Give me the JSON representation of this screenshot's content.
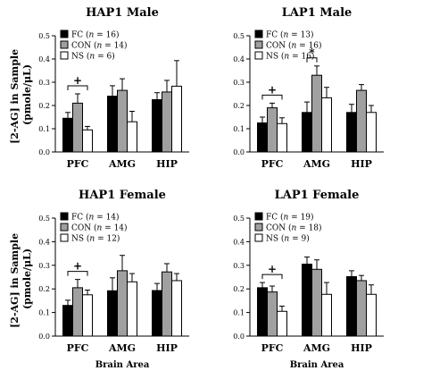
{
  "figure": {
    "ylabel_line1": "[2-AG] in Sample",
    "ylabel_line2": "(pmole/μL)",
    "xlabel": "Brain Area"
  },
  "colors": {
    "FC": "#000000",
    "CON": "#a0a0a0",
    "NS": "#ffffff",
    "stroke": "#000000"
  },
  "chart_data": [
    {
      "type": "bar",
      "title": "HAP1 Male",
      "categories": [
        "PFC",
        "AMG",
        "HIP"
      ],
      "ylim": [
        0,
        0.5
      ],
      "yticks": [
        "0.0",
        "0.1",
        "0.2",
        "0.3",
        "0.4",
        "0.5"
      ],
      "series": [
        {
          "name": "FC",
          "n": "16",
          "values": [
            0.145,
            0.24,
            0.225
          ],
          "errors": [
            0.025,
            0.045,
            0.03
          ]
        },
        {
          "name": "CON",
          "n": "14",
          "values": [
            0.21,
            0.265,
            0.258
          ],
          "errors": [
            0.04,
            0.05,
            0.05
          ]
        },
        {
          "name": "NS",
          "n": "6",
          "values": [
            0.095,
            0.13,
            0.283
          ],
          "errors": [
            0.015,
            0.045,
            0.11
          ]
        }
      ],
      "significance": [
        {
          "category": "PFC",
          "between": [
            "FC",
            "NS"
          ],
          "symbol": "+"
        }
      ],
      "legend": "top-left",
      "show_xlabel": false
    },
    {
      "type": "bar",
      "title": "LAP1 Male",
      "categories": [
        "PFC",
        "AMG",
        "HIP"
      ],
      "ylim": [
        0,
        0.5
      ],
      "yticks": [
        "0.0",
        "0.1",
        "0.2",
        "0.3",
        "0.4",
        "0.5"
      ],
      "series": [
        {
          "name": "FC",
          "n": "13",
          "values": [
            0.125,
            0.17,
            0.17
          ],
          "errors": [
            0.025,
            0.045,
            0.035
          ]
        },
        {
          "name": "CON",
          "n": "16",
          "values": [
            0.19,
            0.33,
            0.265
          ],
          "errors": [
            0.02,
            0.04,
            0.025
          ]
        },
        {
          "name": "NS",
          "n": "16",
          "values": [
            0.122,
            0.233,
            0.17
          ],
          "errors": [
            0.025,
            0.045,
            0.03
          ]
        }
      ],
      "significance": [
        {
          "category": "PFC",
          "between": [
            "FC",
            "NS"
          ],
          "symbol": "+"
        },
        {
          "category": "AMG",
          "between": [
            "FC",
            "CON"
          ],
          "symbol": "*"
        }
      ],
      "legend": "top-left",
      "show_xlabel": false
    },
    {
      "type": "bar",
      "title": "HAP1 Female",
      "categories": [
        "PFC",
        "AMG",
        "HIP"
      ],
      "ylim": [
        0,
        0.5
      ],
      "yticks": [
        "0.0",
        "0.1",
        "0.2",
        "0.3",
        "0.4",
        "0.5"
      ],
      "series": [
        {
          "name": "FC",
          "n": "14",
          "values": [
            0.13,
            0.192,
            0.193
          ],
          "errors": [
            0.022,
            0.055,
            0.03
          ]
        },
        {
          "name": "CON",
          "n": "14",
          "values": [
            0.205,
            0.277,
            0.272
          ],
          "errors": [
            0.035,
            0.065,
            0.035
          ]
        },
        {
          "name": "NS",
          "n": "12",
          "values": [
            0.175,
            0.23,
            0.235
          ],
          "errors": [
            0.02,
            0.035,
            0.03
          ]
        }
      ],
      "significance": [
        {
          "category": "PFC",
          "between": [
            "FC",
            "NS"
          ],
          "symbol": "+"
        }
      ],
      "legend": "top-left",
      "show_xlabel": true
    },
    {
      "type": "bar",
      "title": "LAP1 Female",
      "categories": [
        "PFC",
        "AMG",
        "HIP"
      ],
      "ylim": [
        0,
        0.5
      ],
      "yticks": [
        "0.0",
        "0.1",
        "0.2",
        "0.3",
        "0.4",
        "0.5"
      ],
      "series": [
        {
          "name": "FC",
          "n": "19",
          "values": [
            0.205,
            0.305,
            0.252
          ],
          "errors": [
            0.022,
            0.03,
            0.025
          ]
        },
        {
          "name": "CON",
          "n": "18",
          "values": [
            0.187,
            0.283,
            0.235
          ],
          "errors": [
            0.025,
            0.04,
            0.022
          ]
        },
        {
          "name": "NS",
          "n": "9",
          "values": [
            0.105,
            0.177,
            0.177
          ],
          "errors": [
            0.022,
            0.05,
            0.04
          ]
        }
      ],
      "significance": [
        {
          "category": "PFC",
          "between": [
            "FC",
            "NS"
          ],
          "symbol": "+"
        }
      ],
      "legend": "top-left",
      "show_xlabel": true
    }
  ]
}
